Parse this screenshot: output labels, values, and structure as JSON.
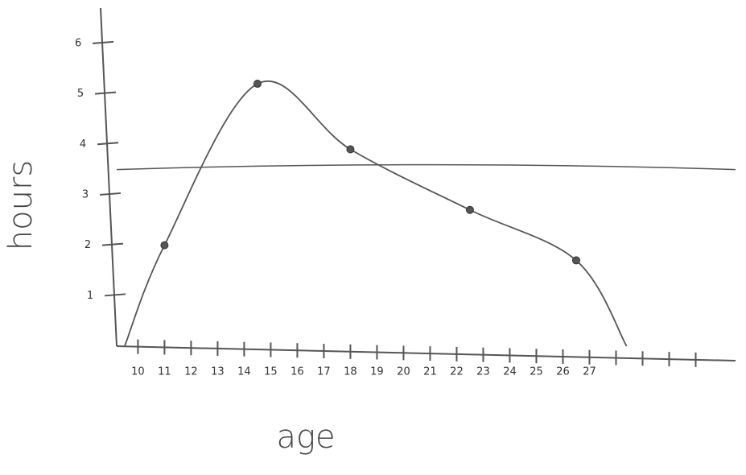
{
  "chart_data": {
    "type": "line",
    "x_label": "age",
    "y_label": "hours",
    "x": [
      9.5,
      11,
      14.5,
      18,
      22.5,
      26.5,
      28.4
    ],
    "values": [
      0,
      2,
      5.2,
      3.9,
      2.7,
      1.7,
      0
    ],
    "color": "#555555",
    "reference_line": 3.5,
    "xlim": [
      9.2,
      32.5
    ],
    "ylim": [
      0,
      6.7
    ],
    "xticks": [
      10,
      11,
      12,
      13,
      14,
      15,
      16,
      17,
      18,
      19,
      20,
      21,
      22,
      23,
      24,
      25,
      26,
      27
    ],
    "x_minor_ticks": [
      28,
      29,
      30,
      31
    ],
    "yticks": [
      1,
      2,
      3,
      4,
      5,
      6
    ]
  }
}
